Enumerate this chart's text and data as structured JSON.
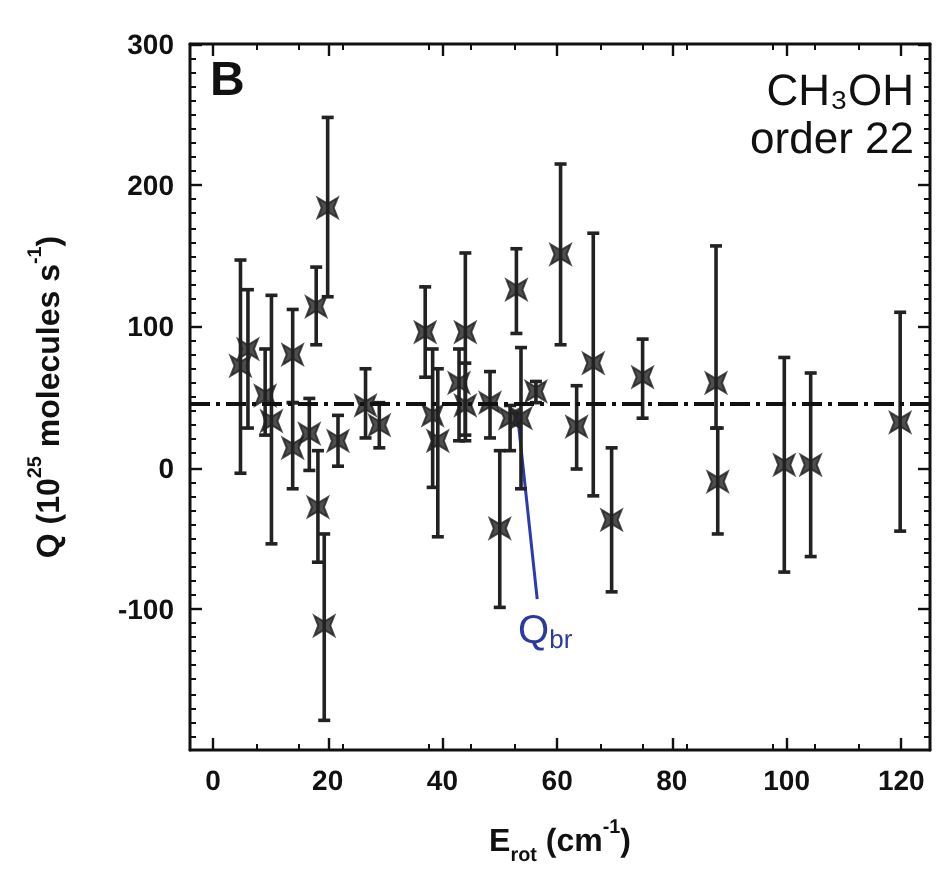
{
  "chart_data": {
    "type": "scatter",
    "xlabel": "E$_{rot}$ (cm$^{-1}$)",
    "ylabel": "Q (10$^{25}$ molecules s$^{-1}$)",
    "annotations": [
      "B",
      "CH₃OH",
      "order 22"
    ],
    "xlim": [
      -4,
      125
    ],
    "xticks": [
      0,
      20,
      40,
      60,
      80,
      100,
      120
    ],
    "ylim": [
      -200,
      300
    ],
    "yticks": [
      -100,
      0,
      100,
      200,
      300
    ],
    "grid": false,
    "marker": "cross",
    "ref_lines": [
      {
        "axis": "y",
        "value": 45,
        "label": "Q$_{br}$",
        "color": "#111111",
        "line_style": "dashed"
      }
    ],
    "series": [
      {
        "color": "#222222",
        "x": [
          4.8,
          6.1,
          9.1,
          10.2,
          13.9,
          13.9,
          16.8,
          18,
          18.3,
          19.4,
          20,
          21.8,
          26.6,
          29,
          37,
          38.3,
          39.2,
          42.9,
          44,
          44,
          48.3,
          50,
          51.8,
          52.9,
          53.7,
          56.3,
          60.6,
          63.4,
          66.3,
          69.5,
          74.9,
          87.7,
          88,
          99.6,
          104.2,
          119.8
        ],
        "values": [
          72,
          84,
          51,
          33,
          80,
          14,
          24,
          114,
          -28,
          -112,
          184,
          19,
          44,
          30,
          96,
          37,
          19,
          60,
          96,
          44,
          46,
          -43,
          35,
          126,
          35,
          54,
          151,
          29,
          74,
          -37,
          64,
          60,
          -10,
          2,
          2,
          32
        ],
        "errors": [
          [
            -4,
            147
          ],
          [
            28,
            126
          ],
          [
            23,
            84
          ],
          [
            -54,
            122
          ],
          [
            46,
            112
          ],
          [
            -15,
            46
          ],
          [
            -2,
            49
          ],
          [
            87,
            142
          ],
          [
            -67,
            12
          ],
          [
            -179,
            -47
          ],
          [
            121,
            248
          ],
          [
            1,
            37
          ],
          [
            21,
            70
          ],
          [
            14,
            46
          ],
          [
            64,
            128
          ],
          [
            -14,
            84
          ],
          [
            -49,
            70
          ],
          [
            19,
            84
          ],
          [
            19,
            152
          ],
          [
            23,
            74
          ],
          [
            21,
            68
          ],
          [
            -99,
            12
          ],
          [
            12,
            44
          ],
          [
            95,
            155
          ],
          [
            -15,
            85
          ],
          [
            46,
            61
          ],
          [
            87,
            215
          ],
          [
            -1,
            58
          ],
          [
            -20,
            166
          ],
          [
            -88,
            14
          ],
          [
            35,
            91
          ],
          [
            28,
            157
          ],
          [
            -47,
            28
          ],
          [
            -74,
            78
          ],
          [
            -63,
            67
          ],
          [
            -45,
            110
          ]
        ]
      }
    ]
  }
}
